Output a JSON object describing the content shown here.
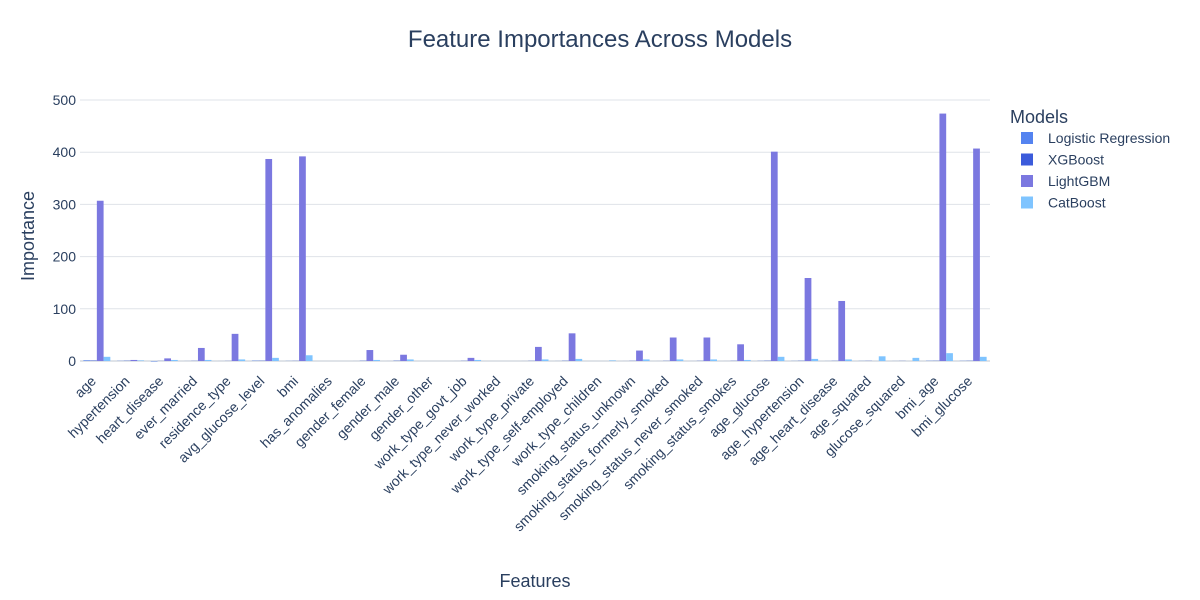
{
  "chart_data": {
    "type": "bar",
    "title": "Feature Importances Across Models",
    "xlabel": "Features",
    "ylabel": "Importance",
    "ylim": [
      -10,
      520
    ],
    "yticks": [
      0,
      100,
      200,
      300,
      400,
      500
    ],
    "grid": true,
    "legend_title": "Models",
    "legend_position": "top-right",
    "categories": [
      "age",
      "hypertension",
      "heart_disease",
      "ever_married",
      "residence_type",
      "avg_glucose_level",
      "bmi",
      "has_anomalies",
      "gender_female",
      "gender_male",
      "gender_other",
      "work_type_govt_job",
      "work_type_never_worked",
      "work_type_private",
      "work_type_self-employed",
      "work_type_children",
      "smoking_status_unknown",
      "smoking_status_formerly_smoked",
      "smoking_status_never_smoked",
      "smoking_status_smokes",
      "age_glucose",
      "age_hypertension",
      "age_heart_disease",
      "age_squared",
      "glucose_squared",
      "bmi_age",
      "bmi_glucose"
    ],
    "series": [
      {
        "name": "Logistic Regression",
        "color": "#5483f0",
        "values": [
          1.2,
          0.3,
          -0.8,
          0.1,
          0.05,
          0.6,
          0.2,
          0.0,
          0.05,
          0.05,
          0.0,
          0.05,
          0.0,
          0.05,
          0.1,
          0.0,
          0.05,
          0.05,
          0.05,
          0.05,
          0.3,
          0.2,
          0.1,
          0.2,
          0.1,
          0.4,
          0.3
        ]
      },
      {
        "name": "XGBoost",
        "color": "#3b5bdb",
        "values": [
          0.8,
          0.5,
          0.2,
          0.3,
          0.2,
          0.5,
          0.3,
          0.0,
          0.4,
          0.5,
          0.0,
          0.3,
          0.0,
          0.3,
          0.4,
          0.0,
          0.3,
          0.3,
          0.3,
          0.3,
          0.5,
          0.4,
          0.3,
          0.3,
          0.2,
          0.4,
          0.4
        ]
      },
      {
        "name": "LightGBM",
        "color": "#7b78e0",
        "values": [
          307,
          2,
          5,
          25,
          52,
          387,
          392,
          0,
          21,
          12,
          0,
          6,
          0,
          27,
          53,
          0,
          20,
          45,
          45,
          32,
          401,
          159,
          115,
          0,
          0,
          474,
          407
        ]
      },
      {
        "name": "CatBoost",
        "color": "#7fc4ff",
        "values": [
          8,
          1,
          2,
          2,
          3,
          6,
          11,
          0,
          2,
          3,
          0,
          2,
          0,
          3,
          4,
          1,
          3,
          3,
          3,
          2,
          8,
          4,
          3,
          9,
          6,
          15,
          8
        ]
      }
    ]
  }
}
